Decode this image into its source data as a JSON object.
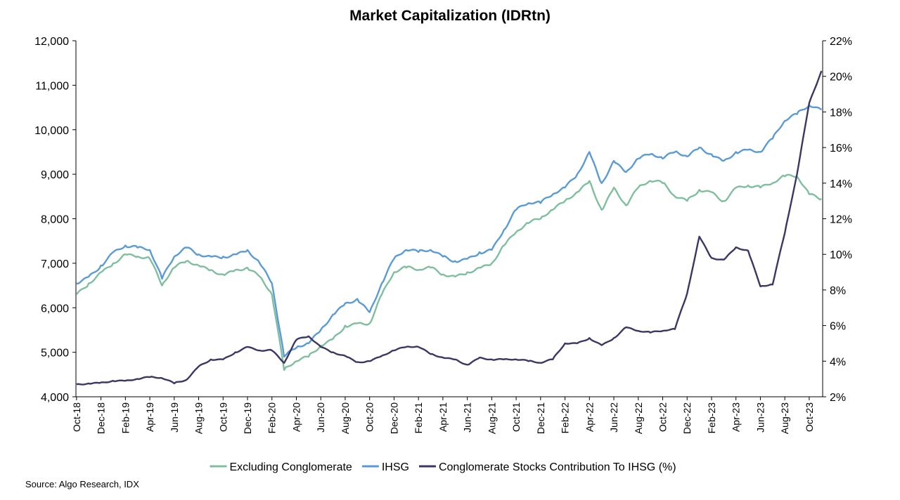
{
  "chart_data": {
    "type": "line",
    "title": "Market Capitalization (IDRtn)",
    "source": "Source: Algo Research, IDX",
    "xlabel": "",
    "ylabel": "",
    "y_left": {
      "min": 4000,
      "max": 12000,
      "ticks": [
        "4,000",
        "5,000",
        "6,000",
        "7,000",
        "8,000",
        "9,000",
        "10,000",
        "11,000",
        "12,000"
      ]
    },
    "y_right": {
      "min": 2,
      "max": 22,
      "ticks": [
        "2%",
        "4%",
        "6%",
        "8%",
        "10%",
        "12%",
        "14%",
        "16%",
        "18%",
        "20%",
        "22%"
      ]
    },
    "x_ticks": [
      "Oct-18",
      "Dec-18",
      "Feb-19",
      "Apr-19",
      "Jun-19",
      "Aug-19",
      "Oct-19",
      "Dec-19",
      "Feb-20",
      "Apr-20",
      "Jun-20",
      "Aug-20",
      "Oct-20",
      "Dec-20",
      "Feb-21",
      "Apr-21",
      "Jun-21",
      "Aug-21",
      "Oct-21",
      "Dec-21",
      "Feb-22",
      "Apr-22",
      "Jun-22",
      "Aug-22",
      "Oct-22",
      "Dec-22",
      "Feb-23",
      "Apr-23",
      "Jun-23",
      "Aug-23",
      "Oct-23"
    ],
    "x_range": [
      "Oct-18",
      "Nov-23"
    ],
    "grid": false,
    "legend_position": "bottom",
    "series": [
      {
        "name": "Excluding Conglomerate",
        "axis": "left",
        "color": "#7fbf9f",
        "x": [
          "Oct-18",
          "Nov-18",
          "Dec-18",
          "Jan-19",
          "Feb-19",
          "Mar-19",
          "Apr-19",
          "May-19",
          "Jun-19",
          "Jul-19",
          "Aug-19",
          "Sep-19",
          "Oct-19",
          "Nov-19",
          "Dec-19",
          "Jan-20",
          "Feb-20",
          "Mar-20",
          "Apr-20",
          "May-20",
          "Jun-20",
          "Jul-20",
          "Aug-20",
          "Sep-20",
          "Oct-20",
          "Nov-20",
          "Dec-20",
          "Jan-21",
          "Feb-21",
          "Mar-21",
          "Apr-21",
          "May-21",
          "Jun-21",
          "Jul-21",
          "Aug-21",
          "Sep-21",
          "Oct-21",
          "Nov-21",
          "Dec-21",
          "Jan-22",
          "Feb-22",
          "Mar-22",
          "Apr-22",
          "May-22",
          "Jun-22",
          "Jul-22",
          "Aug-22",
          "Sep-22",
          "Oct-22",
          "Nov-22",
          "Dec-22",
          "Jan-23",
          "Feb-23",
          "Mar-23",
          "Apr-23",
          "May-23",
          "Jun-23",
          "Jul-23",
          "Aug-23",
          "Sep-23",
          "Oct-23",
          "Nov-23"
        ],
        "values": [
          6300,
          6550,
          6800,
          7000,
          7200,
          7150,
          7100,
          6500,
          6900,
          7050,
          6950,
          6850,
          6750,
          6850,
          6900,
          6700,
          6300,
          4600,
          4800,
          4900,
          5150,
          5300,
          5600,
          5650,
          5650,
          6300,
          6800,
          6900,
          6850,
          6900,
          6750,
          6700,
          6800,
          6900,
          7000,
          7400,
          7700,
          7900,
          8000,
          8200,
          8400,
          8600,
          8850,
          8200,
          8700,
          8300,
          8700,
          8850,
          8800,
          8500,
          8400,
          8650,
          8600,
          8400,
          8700,
          8750,
          8700,
          8800,
          8950,
          8950,
          8550,
          8450
        ]
      },
      {
        "name": "IHSG",
        "axis": "left",
        "color": "#5b9bd5",
        "x": [
          "Oct-18",
          "Nov-18",
          "Dec-18",
          "Jan-19",
          "Feb-19",
          "Mar-19",
          "Apr-19",
          "May-19",
          "Jun-19",
          "Jul-19",
          "Aug-19",
          "Sep-19",
          "Oct-19",
          "Nov-19",
          "Dec-19",
          "Jan-20",
          "Feb-20",
          "Mar-20",
          "Apr-20",
          "May-20",
          "Jun-20",
          "Jul-20",
          "Aug-20",
          "Sep-20",
          "Oct-20",
          "Nov-20",
          "Dec-20",
          "Jan-21",
          "Feb-21",
          "Mar-21",
          "Apr-21",
          "May-21",
          "Jun-21",
          "Jul-21",
          "Aug-21",
          "Sep-21",
          "Oct-21",
          "Nov-21",
          "Dec-21",
          "Jan-22",
          "Feb-22",
          "Mar-22",
          "Apr-22",
          "May-22",
          "Jun-22",
          "Jul-22",
          "Aug-22",
          "Sep-22",
          "Oct-22",
          "Nov-22",
          "Dec-22",
          "Jan-23",
          "Feb-23",
          "Mar-23",
          "Apr-23",
          "May-23",
          "Jun-23",
          "Jul-23",
          "Aug-23",
          "Sep-23",
          "Oct-23",
          "Nov-23"
        ],
        "values": [
          6550,
          6700,
          6950,
          7250,
          7400,
          7350,
          7300,
          6650,
          7150,
          7350,
          7200,
          7150,
          7150,
          7200,
          7300,
          7000,
          6550,
          4900,
          5100,
          5200,
          5500,
          5850,
          6100,
          6200,
          5900,
          6550,
          7100,
          7300,
          7250,
          7300,
          7150,
          7050,
          7100,
          7250,
          7300,
          7750,
          8200,
          8350,
          8350,
          8550,
          8700,
          9000,
          9500,
          8800,
          9300,
          9050,
          9350,
          9450,
          9350,
          9500,
          9400,
          9600,
          9450,
          9300,
          9500,
          9550,
          9500,
          9800,
          10200,
          10350,
          10550,
          10450
        ]
      },
      {
        "name": "Conglomerate Stocks Contribution To IHSG (%)",
        "axis": "right",
        "color": "#3b3765",
        "x": [
          "Oct-18",
          "Nov-18",
          "Dec-18",
          "Jan-19",
          "Feb-19",
          "Mar-19",
          "Apr-19",
          "May-19",
          "Jun-19",
          "Jul-19",
          "Aug-19",
          "Sep-19",
          "Oct-19",
          "Nov-19",
          "Dec-19",
          "Jan-20",
          "Feb-20",
          "Mar-20",
          "Apr-20",
          "May-20",
          "Jun-20",
          "Jul-20",
          "Aug-20",
          "Sep-20",
          "Oct-20",
          "Nov-20",
          "Dec-20",
          "Jan-21",
          "Feb-21",
          "Mar-21",
          "Apr-21",
          "May-21",
          "Jun-21",
          "Jul-21",
          "Aug-21",
          "Sep-21",
          "Oct-21",
          "Nov-21",
          "Dec-21",
          "Jan-22",
          "Feb-22",
          "Mar-22",
          "Apr-22",
          "May-22",
          "Jun-22",
          "Jul-22",
          "Aug-22",
          "Sep-22",
          "Oct-22",
          "Nov-22",
          "Dec-22",
          "Jan-23",
          "Feb-23",
          "Mar-23",
          "Apr-23",
          "May-23",
          "Jun-23",
          "Jul-23",
          "Aug-23",
          "Sep-23",
          "Oct-23",
          "Nov-23"
        ],
        "values": [
          2.7,
          2.75,
          2.8,
          2.9,
          2.9,
          3.0,
          3.1,
          3.05,
          2.75,
          2.95,
          3.7,
          4.1,
          4.1,
          4.5,
          4.8,
          4.6,
          4.6,
          3.9,
          5.2,
          5.4,
          4.8,
          4.5,
          4.3,
          3.95,
          4.0,
          4.3,
          4.6,
          4.8,
          4.8,
          4.4,
          4.2,
          4.1,
          3.8,
          4.2,
          4.1,
          4.1,
          4.1,
          4.0,
          3.9,
          4.1,
          5.0,
          5.0,
          5.3,
          4.9,
          5.3,
          5.9,
          5.7,
          5.6,
          5.7,
          5.8,
          7.8,
          11.0,
          9.8,
          9.7,
          10.4,
          10.2,
          8.2,
          8.3,
          11.2,
          14.5,
          18.5,
          20.3
        ]
      }
    ]
  }
}
